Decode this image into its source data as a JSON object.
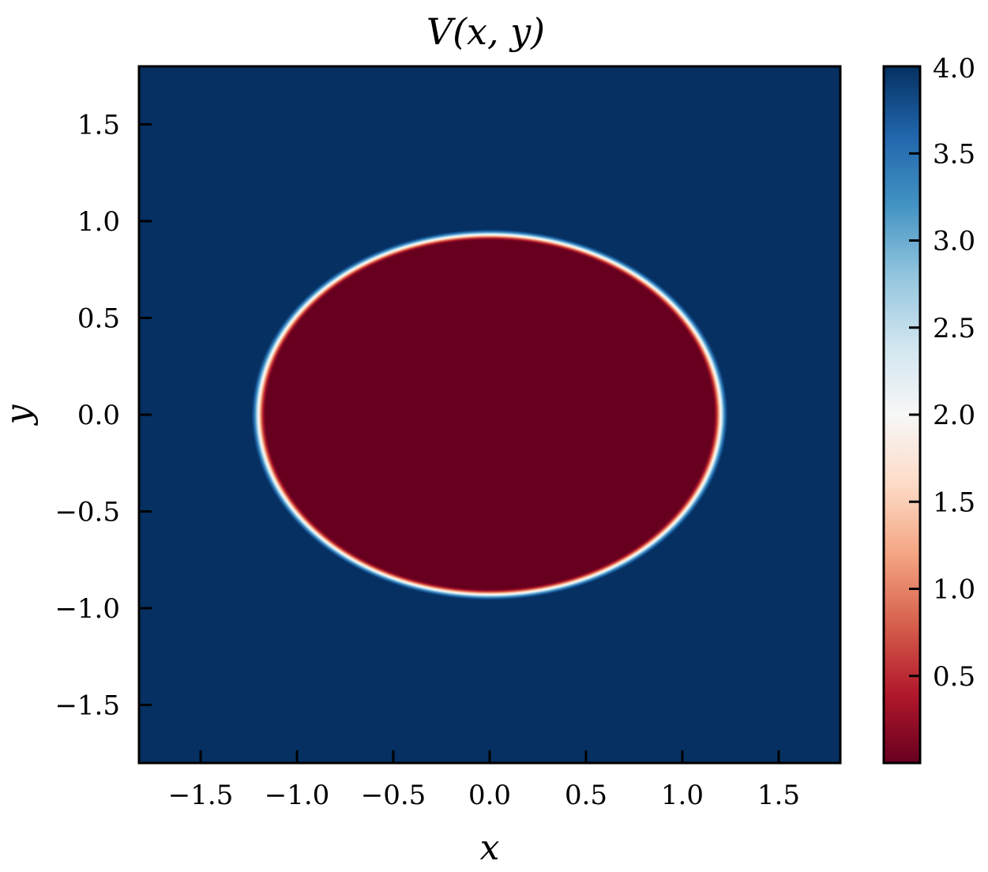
{
  "chart_data": {
    "type": "heatmap",
    "title": "V(x, y)",
    "xlabel": "x",
    "ylabel": "y",
    "xlim": [
      -1.82,
      1.82
    ],
    "ylim": [
      -1.8,
      1.8
    ],
    "x_ticks": [
      -1.5,
      -1.0,
      -0.5,
      0.0,
      0.5,
      1.0,
      1.5
    ],
    "y_ticks": [
      -1.5,
      -1.0,
      -0.5,
      0.0,
      0.5,
      1.0,
      1.5
    ],
    "x_tick_labels": [
      "−1.5",
      "−1.0",
      "−0.5",
      "0.0",
      "0.5",
      "1.0",
      "1.5"
    ],
    "y_tick_labels": [
      "−1.5",
      "−1.0",
      "−0.5",
      "0.0",
      "0.5",
      "1.0",
      "1.5"
    ],
    "field": {
      "description_shape": "ellipse",
      "center": [
        0.0,
        0.0
      ],
      "semi_axis_x": 1.2,
      "semi_axis_y": 0.93,
      "inside_value": 0.0,
      "outside_value": 4.0
    },
    "colorbar": {
      "colormap": "RdBu",
      "vmin": 0.0,
      "vmax": 4.0,
      "ticks": [
        0.5,
        1.0,
        1.5,
        2.0,
        2.5,
        3.0,
        3.5,
        4.0
      ],
      "tick_labels": [
        "0.5",
        "1.0",
        "1.5",
        "2.0",
        "2.5",
        "3.0",
        "3.5",
        "4.0"
      ],
      "colors": [
        "#67001f",
        "#b2182b",
        "#d6604d",
        "#f4a582",
        "#fddbc7",
        "#f7f7f7",
        "#d1e5f0",
        "#92c5de",
        "#4393c3",
        "#2166ac",
        "#053061"
      ]
    },
    "grid": false,
    "legend": "none"
  }
}
